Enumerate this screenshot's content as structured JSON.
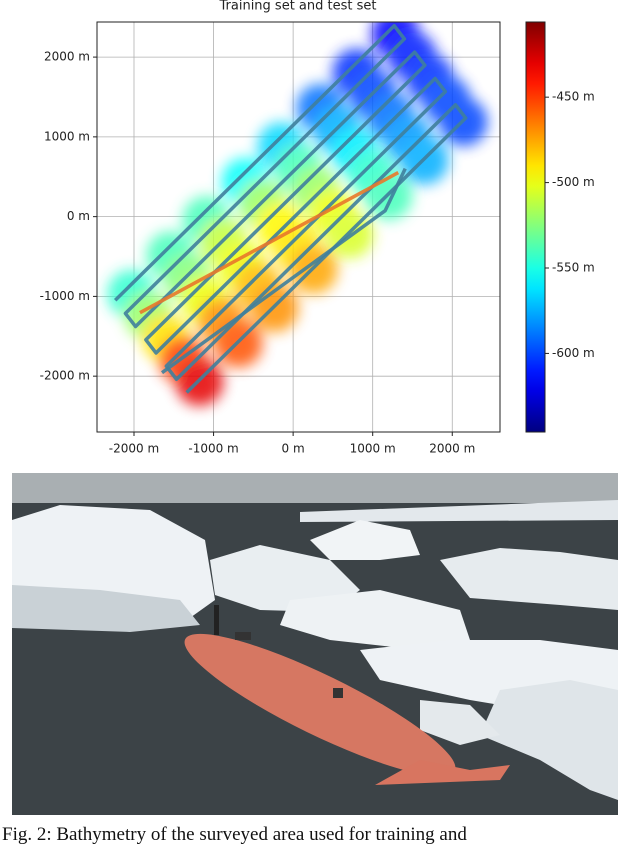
{
  "figure": {
    "chart_data": {
      "type": "bathymetry-map",
      "title": "Training set and test set",
      "xlim": [
        -2465,
        2600
      ],
      "ylim": [
        -2700,
        2440
      ],
      "xticks": [
        {
          "value": -2000,
          "label": "-2000 m"
        },
        {
          "value": -1000,
          "label": "-1000 m"
        },
        {
          "value": 0,
          "label": "0 m"
        },
        {
          "value": 1000,
          "label": "1000 m"
        },
        {
          "value": 2000,
          "label": "2000 m"
        }
      ],
      "yticks": [
        {
          "value": 2000,
          "label": "2000 m"
        },
        {
          "value": 1000,
          "label": "1000 m"
        },
        {
          "value": 0,
          "label": "0 m"
        },
        {
          "value": -1000,
          "label": "-1000 m"
        },
        {
          "value": -2000,
          "label": "-2000 m"
        }
      ],
      "grid": true,
      "colormap": "jet",
      "clim": [
        -646,
        -406
      ],
      "colorbar_ticks": [
        {
          "value": -450,
          "label": "-450 m"
        },
        {
          "value": -500,
          "label": "-500 m"
        },
        {
          "value": -550,
          "label": "-550 m"
        },
        {
          "value": -600,
          "label": "-600 m"
        }
      ],
      "field": {
        "x": [
          -2032,
          -1818,
          -1604,
          -1390,
          -1176,
          -1542,
          -1328,
          -1114,
          -900,
          -686,
          -1089,
          -875,
          -661,
          -447,
          -233,
          -599,
          -385,
          -171,
          43,
          257,
          -147,
          67,
          281,
          495,
          709,
          343,
          557,
          771,
          985,
          1199,
          796,
          1010,
          1224,
          1438,
          1652,
          1286,
          1500,
          1714,
          1928,
          2142
        ],
        "y": [
          -969,
          -1244,
          -1520,
          -1795,
          -2070,
          -488,
          -763,
          -1039,
          -1314,
          -1589,
          -44,
          -319,
          -595,
          -870,
          -1145,
          437,
          162,
          -114,
          -389,
          -664,
          881,
          606,
          330,
          55,
          -220,
          1362,
          1087,
          811,
          536,
          261,
          1806,
          1531,
          1255,
          980,
          705,
          2287,
          2012,
          1736,
          1461,
          1186
        ],
        "depth": [
          -545,
          -520,
          -490,
          -450,
          -430,
          -540,
          -525,
          -500,
          -470,
          -455,
          -540,
          -510,
          -500,
          -480,
          -470,
          -555,
          -520,
          -495,
          -490,
          -475,
          -565,
          -540,
          -520,
          -500,
          -505,
          -590,
          -575,
          -560,
          -545,
          -540,
          -605,
          -600,
          -590,
          -580,
          -575,
          -615,
          -610,
          -605,
          -600,
          -600
        ]
      },
      "tracks": [
        {
          "color": "#3f7f9c",
          "x": [
            -2236,
            1271,
            1399,
            -2108,
            -1980,
            1527,
            1656,
            -1851,
            -1723,
            1784,
            1913,
            -1594,
            -1466,
            2041,
            2169,
            -1338,
            null,
            1409,
            1157,
            -1648
          ],
          "y": [
            -1048,
            2393,
            2228,
            -1213,
            -1378,
            2063,
            1897,
            -1544,
            -1709,
            1732,
            1567,
            -1874,
            -2039,
            1402,
            1236,
            -2205,
            null,
            602,
            75,
            -1956
          ]
        },
        {
          "color": "#e8782a",
          "x": [
            -1925,
            1321
          ],
          "y": [
            -1204,
            552
          ]
        }
      ]
    },
    "caption": "Fig. 2: Bathymetry of the surveyed area used for training and"
  }
}
